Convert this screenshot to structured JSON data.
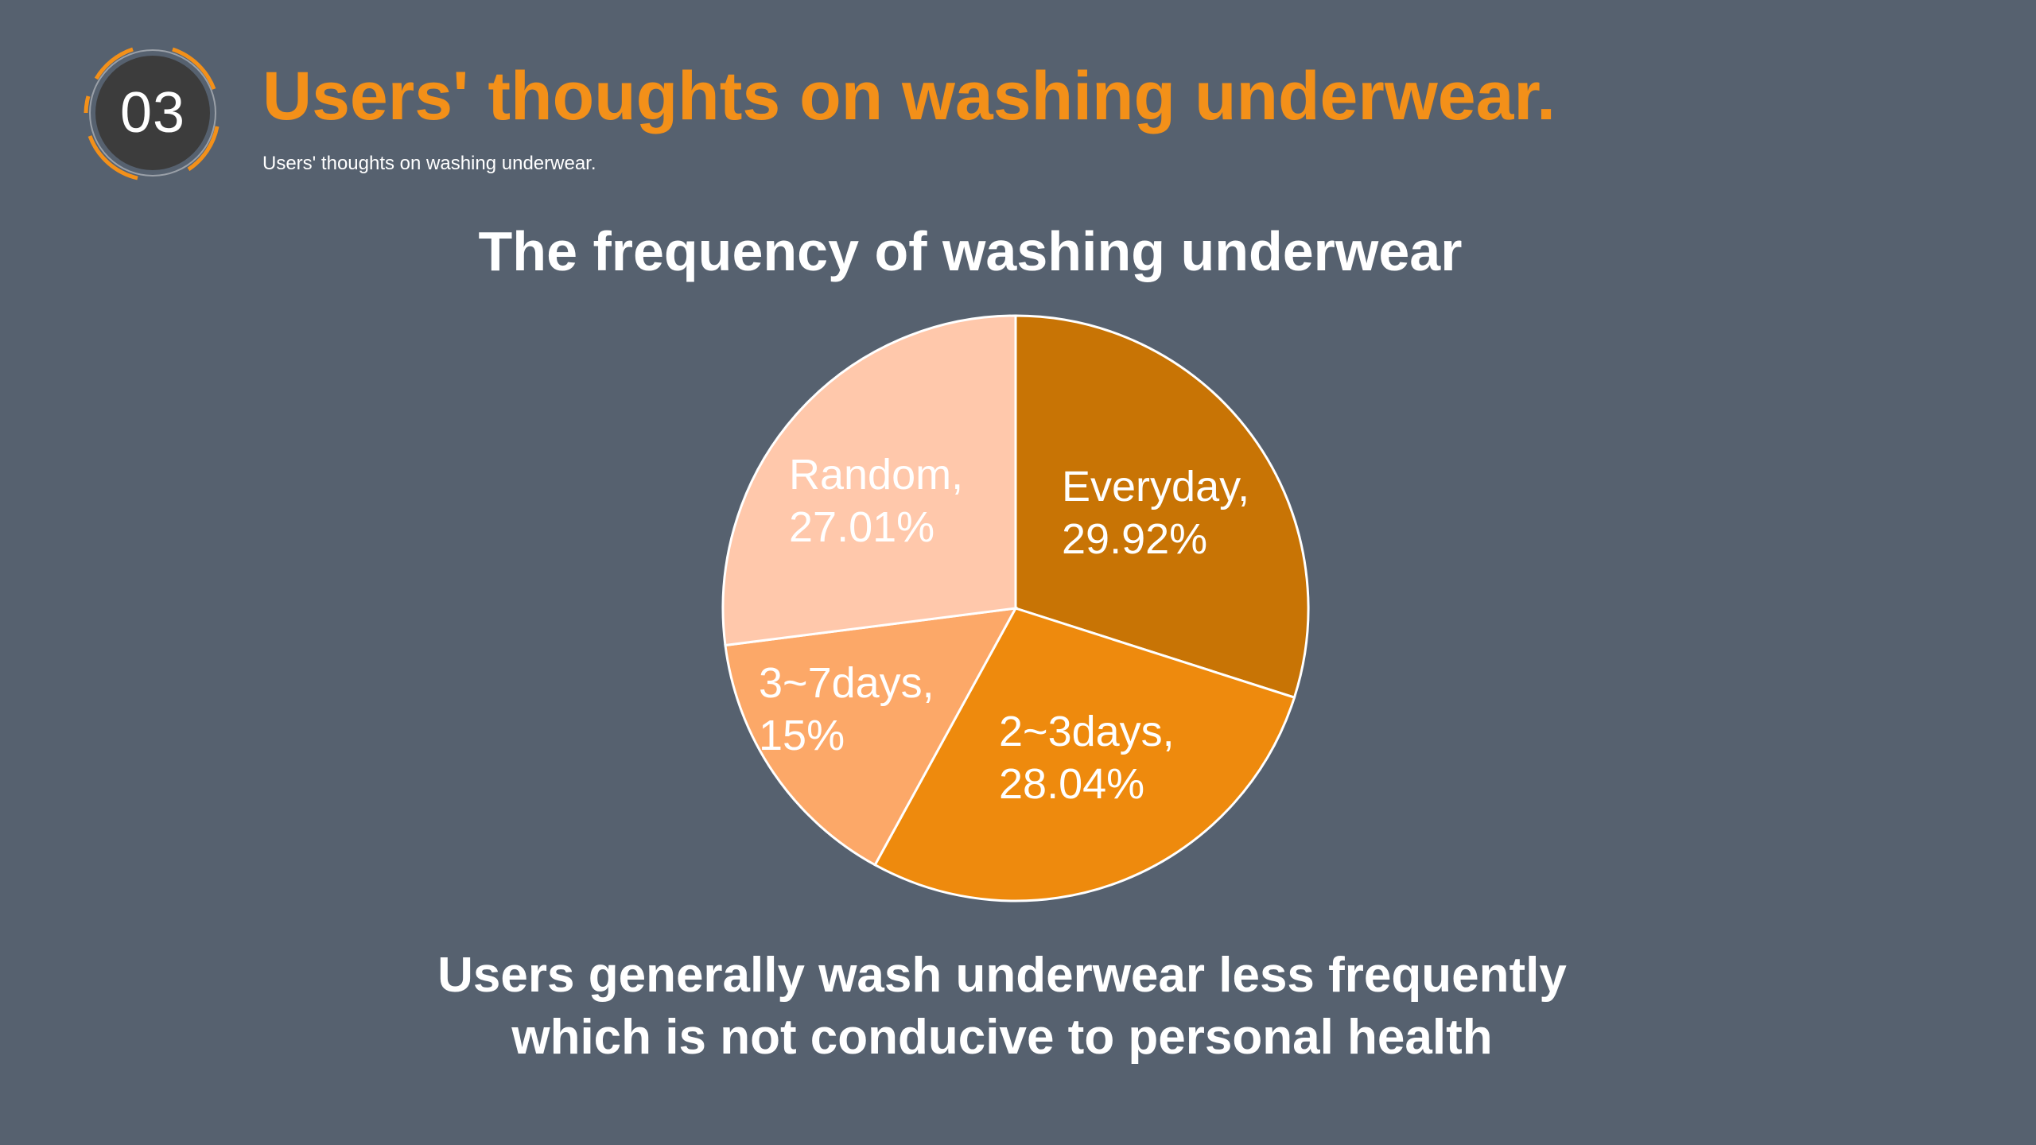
{
  "header": {
    "section_number": "03",
    "title": "Users' thoughts on washing underwear.",
    "subtitle": "Users' thoughts on washing underwear."
  },
  "colors": {
    "background": "#56616f",
    "accent": "#f39019",
    "badge_fill": "#3c3c3c"
  },
  "chart_data": {
    "type": "pie",
    "title": "The frequency of washing underwear",
    "slices": [
      {
        "label": "Everyday",
        "value": 29.92,
        "value_text": "29.92%",
        "color": "#c87405"
      },
      {
        "label": "2~3days",
        "value": 28.04,
        "value_text": "28.04%",
        "color": "#ee8a0d"
      },
      {
        "label": "3~7days",
        "value": 15.0,
        "value_text": "15%",
        "color": "#fca868"
      },
      {
        "label": "Random",
        "value": 27.01,
        "value_text": "27.01%",
        "color": "#ffc8ab"
      }
    ]
  },
  "conclusion": {
    "line1": "Users generally wash underwear less frequently",
    "line2": "which is not conducive to personal health"
  }
}
